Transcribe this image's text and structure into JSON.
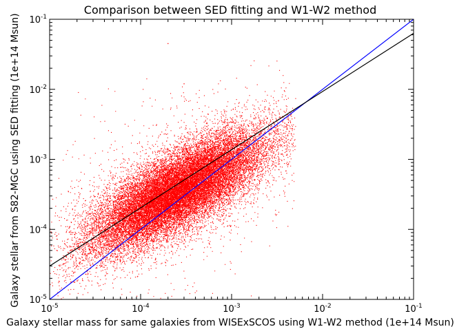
{
  "chart_data": {
    "type": "scatter",
    "title": "Comparison between SED fitting and W1-W2 method",
    "xlabel": "Galaxy stellar mass for same galaxies from WISExSCOS using W1-W2 method (1e+14 Msun)",
    "ylabel": "Galaxy stellar from S82-MGC using SED fitting (1e+14 Msun)",
    "x_scale": "log",
    "y_scale": "log",
    "xlim": [
      1e-05,
      0.1
    ],
    "ylim": [
      1e-05,
      0.1
    ],
    "x_ticks": [
      {
        "base": "10",
        "exp": "-5",
        "value": 1e-05
      },
      {
        "base": "10",
        "exp": "-4",
        "value": 0.0001
      },
      {
        "base": "10",
        "exp": "-3",
        "value": 0.001
      },
      {
        "base": "10",
        "exp": "-2",
        "value": 0.01
      },
      {
        "base": "10",
        "exp": "-1",
        "value": 0.1
      }
    ],
    "y_ticks": [
      {
        "base": "10",
        "exp": "-5",
        "value": 1e-05
      },
      {
        "base": "10",
        "exp": "-4",
        "value": 0.0001
      },
      {
        "base": "10",
        "exp": "-3",
        "value": 0.001
      },
      {
        "base": "10",
        "exp": "-2",
        "value": 0.01
      },
      {
        "base": "10",
        "exp": "-1",
        "value": 0.1
      }
    ],
    "grid": false,
    "scatter_series": {
      "color": "#ff0000",
      "marker_size": 1,
      "approx_point_count": 60000,
      "log_center": [
        -3.6,
        -3.45
      ],
      "log_std_major": 0.6,
      "log_std_minor": 0.22,
      "orientation_slope": 0.85,
      "sample_points": [
        {
          "x": 2e-05,
          "y": 3e-05
        },
        {
          "x": 5e-05,
          "y": 6e-05
        },
        {
          "x": 0.0001,
          "y": 0.0002
        },
        {
          "x": 0.0002,
          "y": 0.0003
        },
        {
          "x": 0.0005,
          "y": 0.0006
        },
        {
          "x": 0.001,
          "y": 0.001
        },
        {
          "x": 0.002,
          "y": 0.002
        },
        {
          "x": 0.004,
          "y": 0.003
        },
        {
          "x": 0.0002,
          "y": 0.045
        },
        {
          "x": 0.0003,
          "y": 0.012
        }
      ]
    },
    "lines": [
      {
        "color": "#0000ff",
        "points": [
          {
            "x": 1e-05,
            "y": 1e-05
          },
          {
            "x": 0.1,
            "y": 0.1
          }
        ]
      },
      {
        "color": "#000000",
        "points": [
          {
            "x": 1e-05,
            "y": 3e-05
          },
          {
            "x": 0.1,
            "y": 0.063
          }
        ]
      }
    ]
  }
}
